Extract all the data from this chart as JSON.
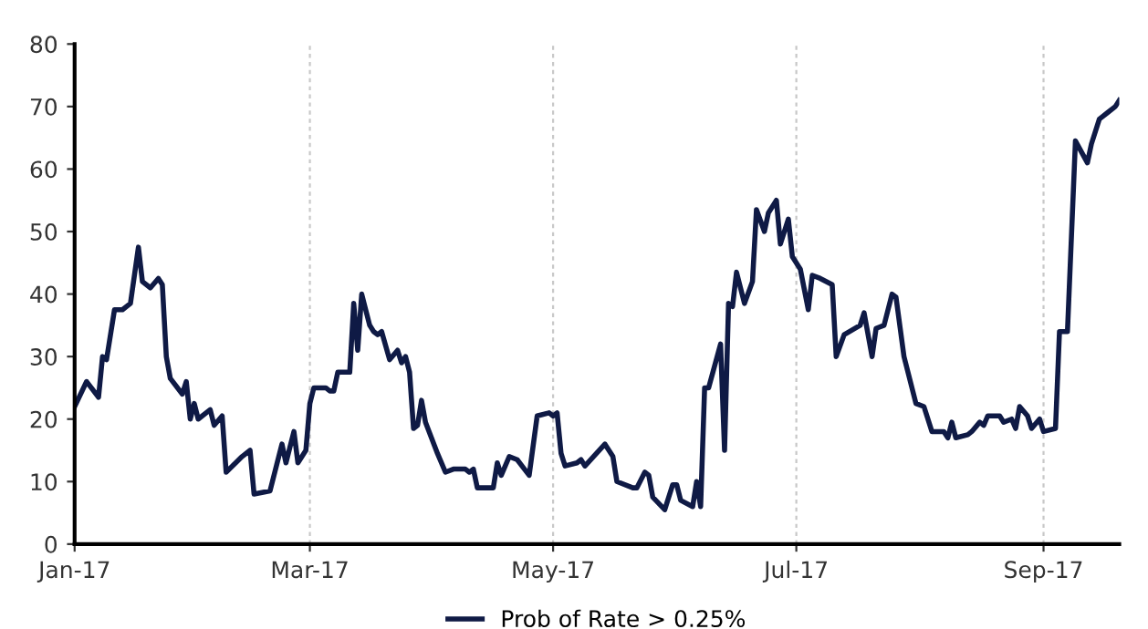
{
  "chart_data": {
    "type": "line",
    "x": [
      "2017-01-01",
      "2017-01-04",
      "2017-01-07",
      "2017-01-08",
      "2017-01-09",
      "2017-01-11",
      "2017-01-13",
      "2017-01-15",
      "2017-01-17",
      "2017-01-18",
      "2017-01-20",
      "2017-01-22",
      "2017-01-23",
      "2017-01-24",
      "2017-01-25",
      "2017-01-28",
      "2017-01-29",
      "2017-01-30",
      "2017-01-31",
      "2017-02-01",
      "2017-02-04",
      "2017-02-05",
      "2017-02-07",
      "2017-02-08",
      "2017-02-12",
      "2017-02-14",
      "2017-02-15",
      "2017-02-19",
      "2017-02-22",
      "2017-02-23",
      "2017-02-25",
      "2017-02-26",
      "2017-02-28",
      "2017-03-01",
      "2017-03-02",
      "2017-03-05",
      "2017-03-06",
      "2017-03-07",
      "2017-03-08",
      "2017-03-11",
      "2017-03-12",
      "2017-03-13",
      "2017-03-14",
      "2017-03-16",
      "2017-03-17",
      "2017-03-18",
      "2017-03-19",
      "2017-03-21",
      "2017-03-23",
      "2017-03-24",
      "2017-03-25",
      "2017-03-26",
      "2017-03-27",
      "2017-03-28",
      "2017-03-29",
      "2017-03-30",
      "2017-04-02",
      "2017-04-04",
      "2017-04-06",
      "2017-04-09",
      "2017-04-10",
      "2017-04-11",
      "2017-04-12",
      "2017-04-16",
      "2017-04-17",
      "2017-04-18",
      "2017-04-20",
      "2017-04-22",
      "2017-04-25",
      "2017-04-27",
      "2017-04-30",
      "2017-05-01",
      "2017-05-02",
      "2017-05-03",
      "2017-05-04",
      "2017-05-07",
      "2017-05-08",
      "2017-05-09",
      "2017-05-14",
      "2017-05-16",
      "2017-05-17",
      "2017-05-21",
      "2017-05-22",
      "2017-05-24",
      "2017-05-25",
      "2017-05-26",
      "2017-05-29",
      "2017-05-31",
      "2017-06-01",
      "2017-06-02",
      "2017-06-05",
      "2017-06-06",
      "2017-06-07",
      "2017-06-08",
      "2017-06-09",
      "2017-06-12",
      "2017-06-13",
      "2017-06-14",
      "2017-06-15",
      "2017-06-16",
      "2017-06-18",
      "2017-06-20",
      "2017-06-21",
      "2017-06-23",
      "2017-06-24",
      "2017-06-26",
      "2017-06-27",
      "2017-06-29",
      "2017-06-30",
      "2017-07-02",
      "2017-07-04",
      "2017-07-05",
      "2017-07-07",
      "2017-07-10",
      "2017-07-11",
      "2017-07-13",
      "2017-07-17",
      "2017-07-18",
      "2017-07-20",
      "2017-07-21",
      "2017-07-23",
      "2017-07-25",
      "2017-07-26",
      "2017-07-28",
      "2017-07-31",
      "2017-08-02",
      "2017-08-04",
      "2017-08-07",
      "2017-08-08",
      "2017-08-09",
      "2017-08-10",
      "2017-08-13",
      "2017-08-14",
      "2017-08-16",
      "2017-08-17",
      "2017-08-18",
      "2017-08-21",
      "2017-08-22",
      "2017-08-24",
      "2017-08-25",
      "2017-08-26",
      "2017-08-28",
      "2017-08-29",
      "2017-08-31",
      "2017-09-01",
      "2017-09-04",
      "2017-09-05",
      "2017-09-07",
      "2017-09-09",
      "2017-09-12",
      "2017-09-13",
      "2017-09-15",
      "2017-09-17",
      "2017-09-19",
      "2017-09-20"
    ],
    "series": [
      {
        "name": "Prob of Rate > 0.25%",
        "color": "#0f1a45",
        "values": [
          22,
          26,
          23.5,
          30,
          29.5,
          37.5,
          37.5,
          38.5,
          47.5,
          42,
          41,
          42.5,
          41.5,
          30,
          26.5,
          24,
          26,
          20,
          22.5,
          20,
          21.5,
          19,
          20.5,
          11.5,
          14,
          15,
          8,
          8.5,
          16,
          13,
          18,
          13,
          15,
          22.5,
          25,
          25,
          24.5,
          24.5,
          27.5,
          27.5,
          38.5,
          31,
          40,
          35,
          34,
          33.5,
          34,
          29.5,
          31,
          29,
          30,
          27.5,
          18.5,
          19,
          23,
          19.5,
          14.5,
          11.5,
          12,
          12,
          11.5,
          12,
          9,
          9,
          13,
          11,
          14,
          13.5,
          11,
          20.5,
          21,
          20.5,
          21,
          14.5,
          12.5,
          13,
          13.5,
          12.5,
          16,
          14,
          10,
          9,
          9,
          11.5,
          11,
          7.5,
          5.5,
          9.5,
          9.5,
          7,
          6,
          10,
          6,
          25,
          25,
          32,
          15,
          38.5,
          38,
          43.5,
          38.5,
          42,
          53.5,
          50,
          53,
          55,
          48,
          52,
          46,
          44,
          37.5,
          43,
          42.5,
          41.5,
          30,
          33.5,
          35,
          37,
          30,
          34.5,
          35,
          40,
          39.5,
          30,
          22.5,
          22,
          18,
          18,
          17,
          19.5,
          17,
          17.5,
          18,
          19.5,
          19,
          20.5,
          20.5,
          19.5,
          20,
          18.5,
          22,
          20.5,
          18.5,
          20,
          18,
          18.5,
          34,
          34,
          64.5,
          61,
          64,
          68,
          69,
          70,
          71
        ]
      }
    ],
    "xlim": [
      "2017-01-01",
      "2017-09-20"
    ],
    "xticks": [
      {
        "value": "2017-01-01",
        "label": "Jan-17"
      },
      {
        "value": "2017-03-01",
        "label": "Mar-17"
      },
      {
        "value": "2017-05-01",
        "label": "May-17"
      },
      {
        "value": "2017-07-01",
        "label": "Jul-17"
      },
      {
        "value": "2017-09-01",
        "label": "Sep-17"
      }
    ],
    "ylim": [
      0,
      80
    ],
    "yticks": [
      0,
      10,
      20,
      30,
      40,
      50,
      60,
      70,
      80
    ],
    "grid": "x",
    "legend": "bottom",
    "line_style": "solid",
    "marker": "none"
  }
}
